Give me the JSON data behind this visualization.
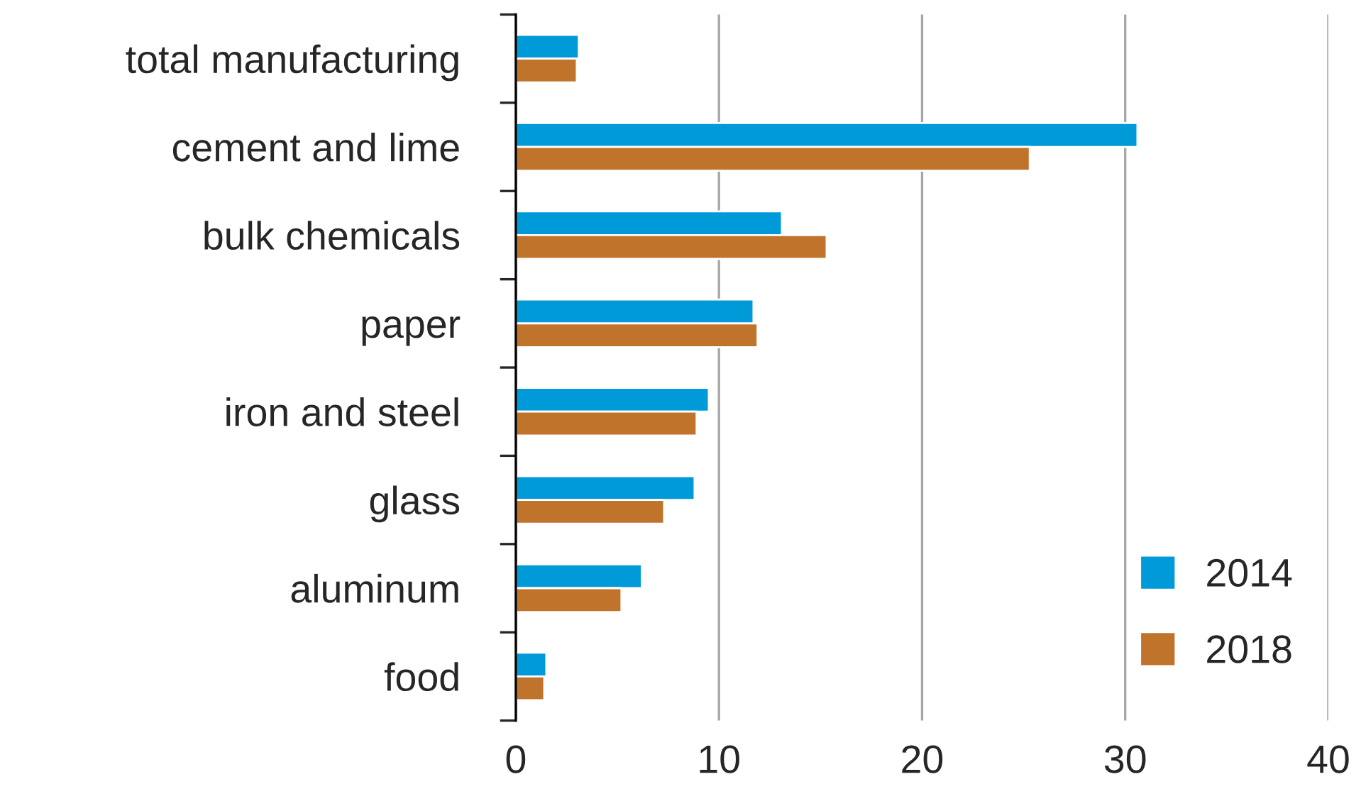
{
  "chart_data": {
    "type": "bar",
    "orientation": "horizontal",
    "categories": [
      "total manufacturing",
      "cement and lime",
      "bulk chemicals",
      "paper",
      "iron and steel",
      "glass",
      "aluminum",
      "food"
    ],
    "series": [
      {
        "name": "2014",
        "color": "#009ad9",
        "values": [
          3.1,
          30.6,
          13.1,
          11.7,
          9.5,
          8.8,
          6.2,
          1.5
        ]
      },
      {
        "name": "2018",
        "color": "#c0732b",
        "values": [
          3.0,
          25.3,
          15.3,
          11.9,
          8.9,
          7.3,
          5.2,
          1.4
        ]
      }
    ],
    "xlim": [
      0,
      40
    ],
    "xticks": [
      0,
      10,
      20,
      30,
      40
    ],
    "grid": "x",
    "legend": "bottom right"
  }
}
